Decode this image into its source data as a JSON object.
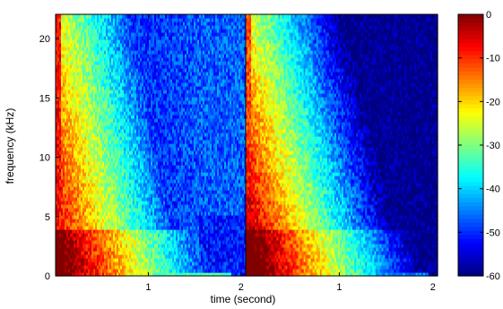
{
  "chart_data": {
    "type": "heatmap",
    "xlabel": "time (second)",
    "ylabel": "frequency (kHz)",
    "panels": [
      {
        "name": "",
        "x_range": [
          0,
          2.05
        ],
        "x_ticks": [
          1,
          2
        ],
        "x_tick_labels": [
          "1",
          "2"
        ]
      },
      {
        "name": "",
        "x_range": [
          0,
          2.05
        ],
        "x_ticks": [
          1,
          2
        ],
        "x_tick_labels": [
          "1",
          "2"
        ]
      }
    ],
    "y_range": [
      0,
      22.05
    ],
    "y_ticks": [
      0,
      5,
      10,
      15,
      20
    ],
    "y_tick_labels": [
      "0",
      "5",
      "10",
      "15",
      "20"
    ],
    "colorbar": {
      "range": [
        -60,
        0
      ],
      "ticks": [
        0,
        -10,
        -20,
        -30,
        -40,
        -50,
        -60
      ],
      "tick_labels": [
        "0",
        "-10",
        "-20",
        "-30",
        "-40",
        "-50",
        "-60"
      ],
      "colormap": "jet"
    },
    "grid": false
  }
}
